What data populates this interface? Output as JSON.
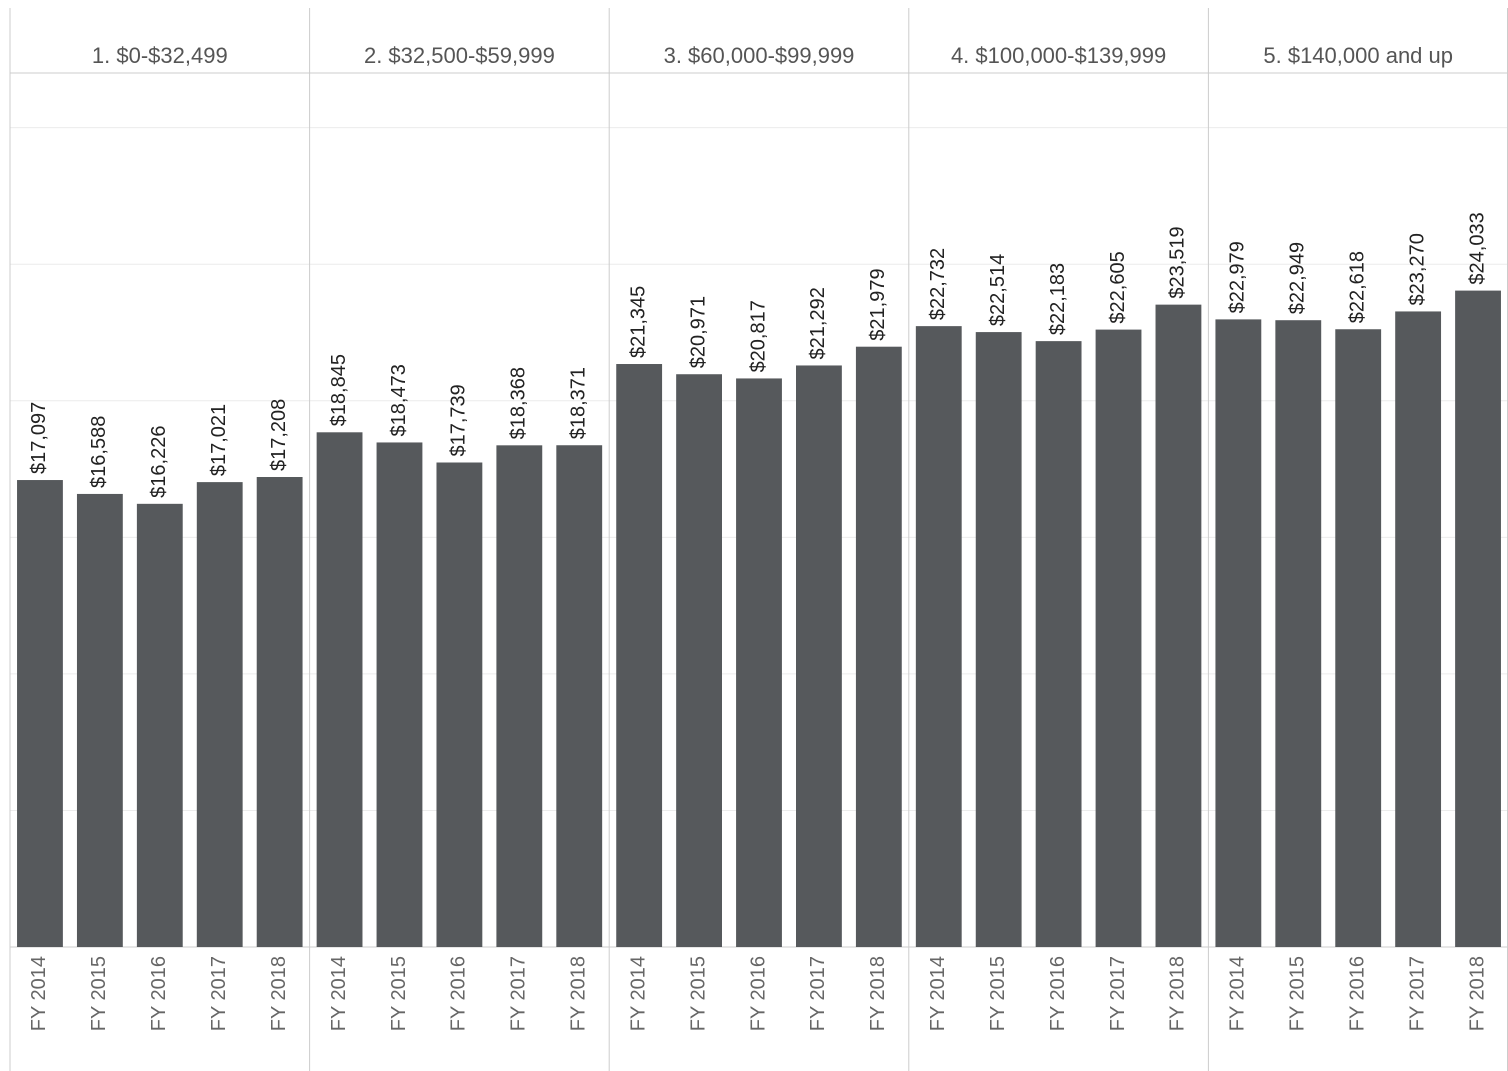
{
  "chart_data": {
    "type": "bar",
    "color": "#56595c",
    "ylim": [
      0,
      32000
    ],
    "yticks": [
      0,
      5000,
      10000,
      15000,
      20000,
      25000,
      30000
    ],
    "grid": true,
    "panels": [
      {
        "title": "1. $0-$32,499",
        "categories": [
          "FY 2014",
          "FY 2015",
          "FY 2016",
          "FY 2017",
          "FY 2018"
        ],
        "values": [
          17097,
          16588,
          16226,
          17021,
          17208
        ],
        "value_labels": [
          "$17,097",
          "$16,588",
          "$16,226",
          "$17,021",
          "$17,208"
        ]
      },
      {
        "title": "2. $32,500-$59,999",
        "categories": [
          "FY 2014",
          "FY 2015",
          "FY 2016",
          "FY 2017",
          "FY 2018"
        ],
        "values": [
          18845,
          18473,
          17739,
          18368,
          18371
        ],
        "value_labels": [
          "$18,845",
          "$18,473",
          "$17,739",
          "$18,368",
          "$18,371"
        ]
      },
      {
        "title": "3. $60,000-$99,999",
        "categories": [
          "FY 2014",
          "FY 2015",
          "FY 2016",
          "FY 2017",
          "FY 2018"
        ],
        "values": [
          21345,
          20971,
          20817,
          21292,
          21979
        ],
        "value_labels": [
          "$21,345",
          "$20,971",
          "$20,817",
          "$21,292",
          "$21,979"
        ]
      },
      {
        "title": "4. $100,000-$139,999",
        "categories": [
          "FY 2014",
          "FY 2015",
          "FY 2016",
          "FY 2017",
          "FY 2018"
        ],
        "values": [
          22732,
          22514,
          22183,
          22605,
          23519
        ],
        "value_labels": [
          "$22,732",
          "$22,514",
          "$22,183",
          "$22,605",
          "$23,519"
        ]
      },
      {
        "title": "5. $140,000 and up",
        "categories": [
          "FY 2014",
          "FY 2015",
          "FY 2016",
          "FY 2017",
          "FY 2018"
        ],
        "values": [
          22979,
          22949,
          22618,
          23270,
          24033
        ],
        "value_labels": [
          "$22,979",
          "$22,949",
          "$22,618",
          "$23,270",
          "$24,033"
        ]
      }
    ]
  }
}
